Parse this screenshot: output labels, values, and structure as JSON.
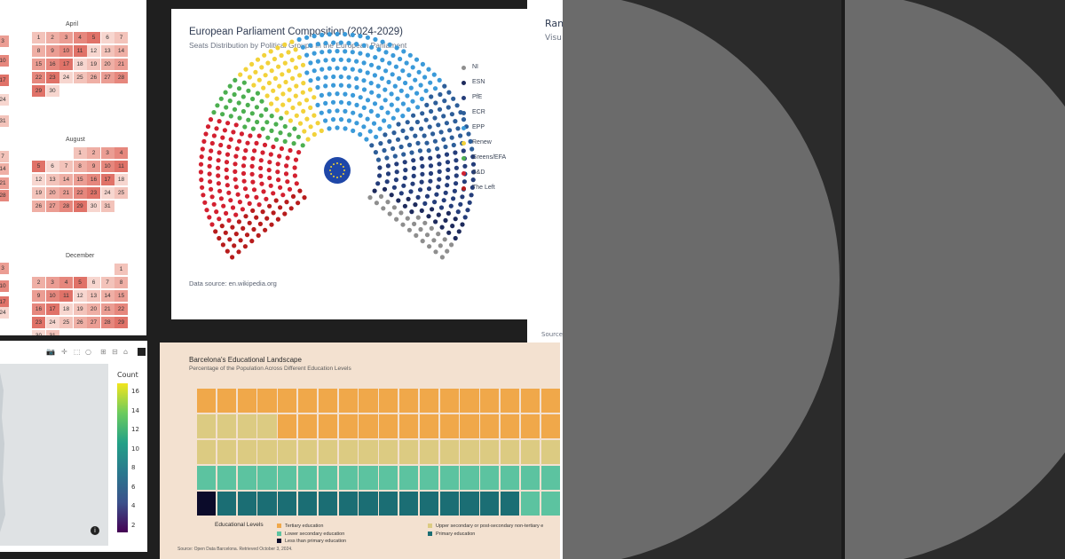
{
  "calendar": {
    "months": [
      "April",
      "August",
      "December"
    ],
    "april_cells": [
      [
        "1",
        "2",
        "3",
        "4",
        "5",
        "6",
        "7"
      ],
      [
        "8",
        "9",
        "10",
        "11",
        "12",
        "13",
        "14"
      ],
      [
        "15",
        "16",
        "17",
        "18",
        "19",
        "20",
        "21"
      ],
      [
        "22",
        "23",
        "24",
        "25",
        "26",
        "27",
        "28"
      ],
      [
        "29",
        "30"
      ]
    ],
    "august_cells": [
      [
        "1",
        "2",
        "3",
        "4"
      ],
      [
        "5",
        "6",
        "7",
        "8",
        "9",
        "10",
        "11"
      ],
      [
        "12",
        "13",
        "14",
        "15",
        "16",
        "17",
        "18"
      ],
      [
        "19",
        "20",
        "21",
        "22",
        "23",
        "24",
        "25"
      ],
      [
        "26",
        "27",
        "28",
        "29",
        "30",
        "31"
      ]
    ],
    "december_cells": [
      [
        "1"
      ],
      [
        "2",
        "3",
        "4",
        "5",
        "6",
        "7",
        "8"
      ],
      [
        "9",
        "10",
        "11",
        "12",
        "13",
        "14",
        "15"
      ],
      [
        "16",
        "17",
        "18",
        "19",
        "20",
        "21",
        "22"
      ],
      [
        "23",
        "24",
        "25",
        "26",
        "27",
        "28",
        "29"
      ],
      [
        "30",
        "31"
      ]
    ],
    "left_col_numbers": [
      "3",
      "10",
      "17",
      "24",
      "31",
      "7",
      "14",
      "21",
      "28",
      "3",
      "10",
      "17",
      "24"
    ]
  },
  "map": {
    "colorbar_title": "Count",
    "colorbar_ticks": [
      "16",
      "14",
      "12",
      "10",
      "8",
      "6",
      "4",
      "2"
    ],
    "info_icon": "info-icon"
  },
  "chart_data": [
    {
      "type": "parliament",
      "title": "European Parliament Composition (2024-2029)",
      "subtitle": "Seats Distribution by Political Groups in the European Parliament",
      "source": "Data source: en.wikipedia.org",
      "series": [
        {
          "name": "NI",
          "seats": 33,
          "color": "#8e8e8e"
        },
        {
          "name": "ESN",
          "seats": 25,
          "color": "#1d2a5c"
        },
        {
          "name": "PfE",
          "seats": 84,
          "color": "#243d7a"
        },
        {
          "name": "ECR",
          "seats": 78,
          "color": "#2d5e99"
        },
        {
          "name": "EPP",
          "seats": 188,
          "color": "#3b9ad9"
        },
        {
          "name": "Renew",
          "seats": 77,
          "color": "#f2d23a"
        },
        {
          "name": "Greens/EFA",
          "seats": 53,
          "color": "#4caf50"
        },
        {
          "name": "S&D",
          "seats": 136,
          "color": "#d32030"
        },
        {
          "name": "The Left",
          "seats": 46,
          "color": "#b71c1c"
        }
      ],
      "legend_labels": [
        "NI",
        "ESN",
        "PfE",
        "ECR",
        "EPP",
        "Renew",
        "Greens/EFA",
        "S&D",
        "The Left"
      ]
    },
    {
      "type": "waffle",
      "title": "Barcelona's Educational Landscape",
      "subtitle": "Percentage of the Population Across Different Education Levels",
      "legend_title": "Educational Levels",
      "source": "Source: Open Data Barcelona. Retrieved October 3, 2024.",
      "categories": [
        "Tertiary education",
        "Upper secondary or post-secondary non-tertiary e",
        "Lower secondary education",
        "Primary education",
        "Less than primary education"
      ],
      "colors": [
        "#f0a84a",
        "#dccb82",
        "#5cc3a0",
        "#1b6e74",
        "#0b0b2a"
      ],
      "rows_visible": [
        [
          "T",
          "T",
          "T",
          "T",
          "T",
          "T",
          "T",
          "T",
          "T",
          "T",
          "T",
          "T",
          "T",
          "T",
          "T",
          "T",
          "T",
          "T"
        ],
        [
          "U",
          "U",
          "U",
          "U",
          "T",
          "T",
          "T",
          "T",
          "T",
          "T",
          "T",
          "T",
          "T",
          "T",
          "T",
          "T",
          "T",
          "T"
        ],
        [
          "U",
          "U",
          "U",
          "U",
          "U",
          "U",
          "U",
          "U",
          "U",
          "U",
          "U",
          "U",
          "U",
          "U",
          "U",
          "U",
          "U",
          "U"
        ],
        [
          "L",
          "L",
          "L",
          "L",
          "L",
          "L",
          "L",
          "L",
          "L",
          "L",
          "L",
          "L",
          "L",
          "L",
          "L",
          "L",
          "L",
          "L"
        ],
        [
          "N",
          "P",
          "P",
          "P",
          "P",
          "P",
          "P",
          "P",
          "P",
          "P",
          "P",
          "P",
          "P",
          "P",
          "P",
          "P",
          "L",
          "L"
        ]
      ]
    }
  ],
  "mid_panel": {
    "title": "Ran",
    "subtitle": "Visu",
    "source": "Source"
  }
}
